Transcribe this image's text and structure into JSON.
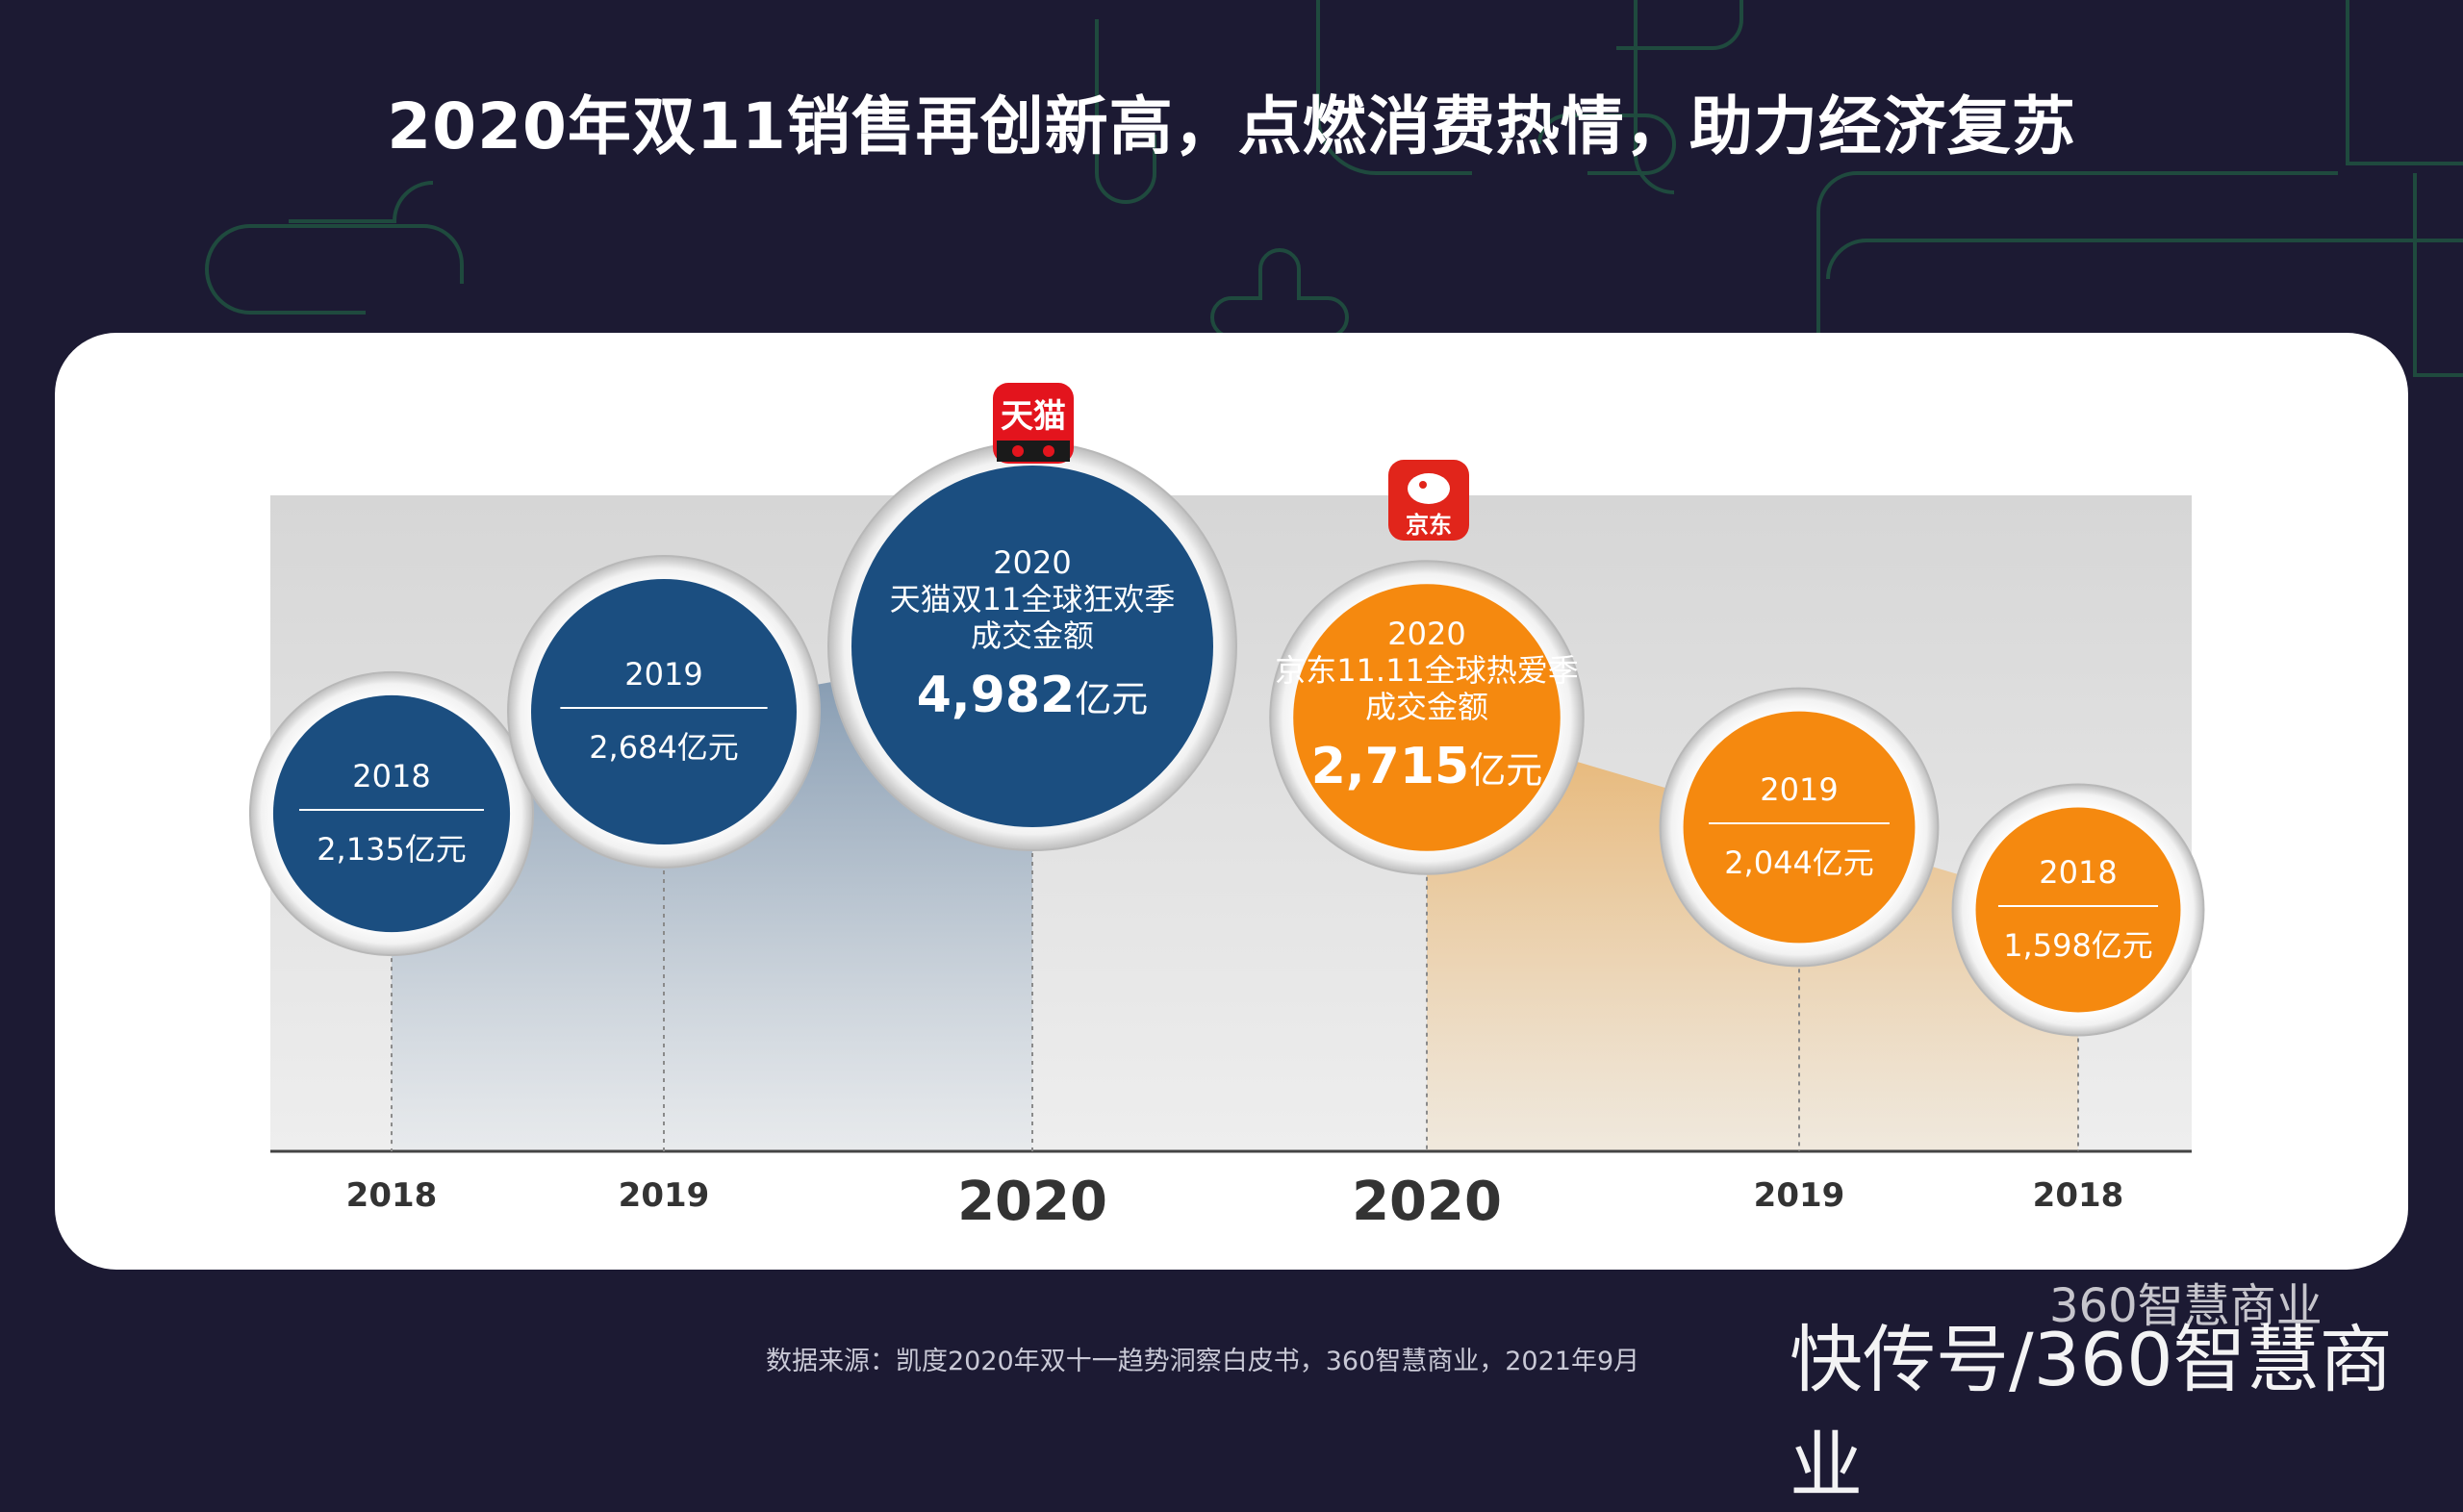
{
  "title": "2020年双11销售再创新高，点燃消费热情，助力经济复苏",
  "source": "数据来源：凯度2020年双十一趋势洞察白皮书，360智慧商业，2021年9月",
  "watermark": "快传号/360智慧商业",
  "watermark_logo": "360智慧商业",
  "colors": {
    "background": "#1c1a33",
    "tmall_blue": "#1b4e80",
    "jd_orange": "#f5890f",
    "tmall_logo": "#e3141d",
    "jd_logo": "#e1251b"
  },
  "logos": {
    "tmall": {
      "name": "tmall-logo",
      "text": "天猫"
    },
    "jd": {
      "name": "jd-logo",
      "text": "京东"
    }
  },
  "chart_data": {
    "type": "bubble",
    "unit": "亿元",
    "x_labels": [
      "2018",
      "2019",
      "2020",
      "2020",
      "2019",
      "2018"
    ],
    "series": [
      {
        "name": "天猫",
        "color": "#1b4e80",
        "points": [
          {
            "year": "2018",
            "value": 2135,
            "label": "2,135亿元"
          },
          {
            "year": "2019",
            "value": 2684,
            "label": "2,684亿元"
          },
          {
            "year": "2020",
            "value": 4982,
            "label": "4,982亿元",
            "desc": [
              "2020",
              "天猫双11全球狂欢季",
              "成交金额"
            ]
          }
        ]
      },
      {
        "name": "京东",
        "color": "#f5890f",
        "points": [
          {
            "year": "2020",
            "value": 2715,
            "label": "2,715亿元",
            "desc": [
              "2020",
              "京东11.11全球热爱季",
              "成交金额"
            ]
          },
          {
            "year": "2019",
            "value": 2044,
            "label": "2,044亿元"
          },
          {
            "year": "2018",
            "value": 1598,
            "label": "1,598亿元"
          }
        ]
      }
    ]
  }
}
